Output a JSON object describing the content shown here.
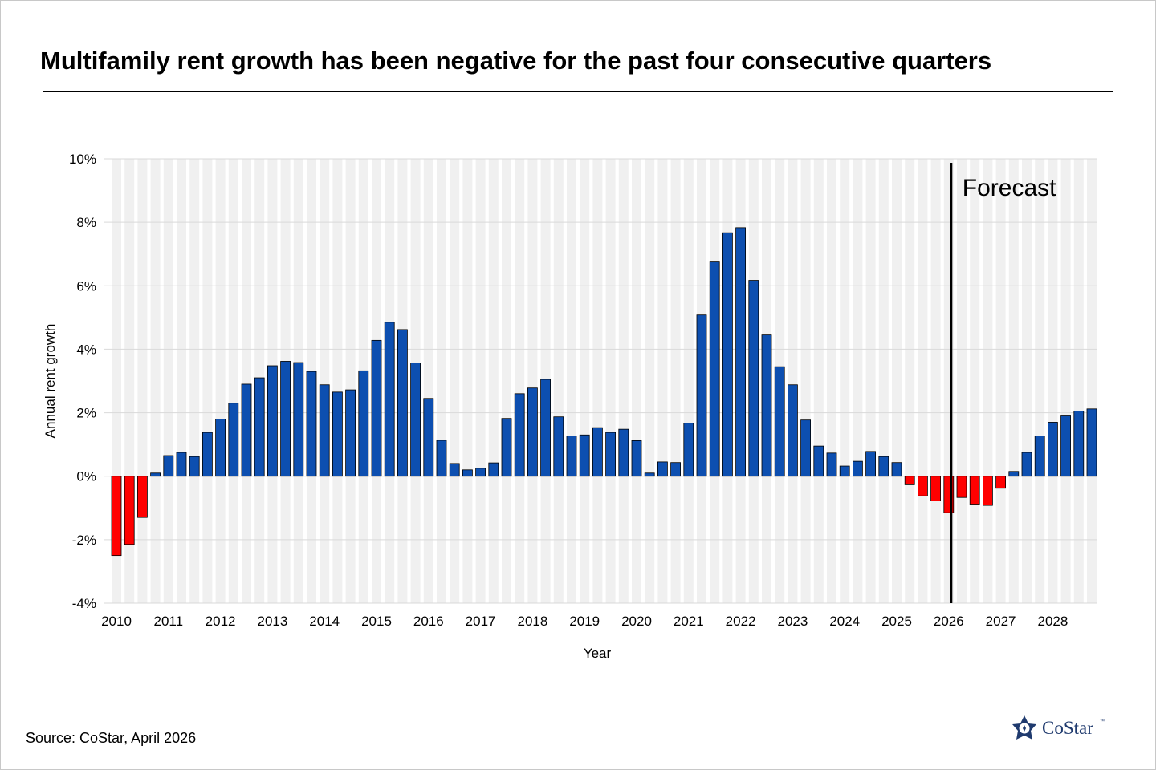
{
  "title": "Multifamily rent growth has been negative for the past four consecutive quarters",
  "source": "Source: CoStar, April 2026",
  "logo": {
    "name": "CoStar",
    "tm": "™",
    "color": "#1f3a6e"
  },
  "chart_data": {
    "type": "bar",
    "xlabel": "Year",
    "ylabel": "Annual rent growth",
    "ylim": [
      -4,
      10
    ],
    "yticks": [
      -4,
      -2,
      0,
      2,
      4,
      6,
      8,
      10
    ],
    "ytick_labels": [
      "-4%",
      "-2%",
      "0%",
      "2%",
      "4%",
      "6%",
      "8%",
      "10%"
    ],
    "year_labels": [
      "2010",
      "2011",
      "2012",
      "2013",
      "2014",
      "2015",
      "2016",
      "2017",
      "2018",
      "2019",
      "2020",
      "2021",
      "2022",
      "2023",
      "2024",
      "2025",
      "2026",
      "2027",
      "2028"
    ],
    "annotation": {
      "text": "Forecast",
      "at_year": "2026"
    },
    "colors": {
      "positive": "#0d4fb0",
      "negative": "#ff0000",
      "band": "#f0f0f0",
      "grid": "#d9d9d9"
    },
    "values": [
      -2.5,
      -2.15,
      -1.3,
      0.1,
      0.65,
      0.75,
      0.62,
      1.38,
      1.8,
      2.3,
      2.9,
      3.1,
      3.48,
      3.62,
      3.58,
      3.3,
      2.88,
      2.65,
      2.72,
      3.32,
      4.28,
      4.85,
      4.62,
      3.57,
      2.45,
      1.13,
      0.4,
      0.2,
      0.25,
      0.42,
      1.82,
      2.6,
      2.78,
      3.05,
      1.87,
      1.27,
      1.3,
      1.53,
      1.38,
      1.48,
      1.12,
      0.1,
      0.45,
      0.43,
      1.67,
      5.08,
      6.75,
      7.67,
      7.83,
      6.17,
      4.45,
      3.45,
      2.88,
      1.77,
      0.95,
      0.73,
      0.32,
      0.47,
      0.78,
      0.62,
      0.43,
      -0.27,
      -0.62,
      -0.78,
      -1.15,
      -0.67,
      -0.88,
      -0.92,
      -0.38,
      0.15,
      0.75,
      1.27,
      1.7,
      1.9,
      2.05,
      2.12
    ]
  }
}
